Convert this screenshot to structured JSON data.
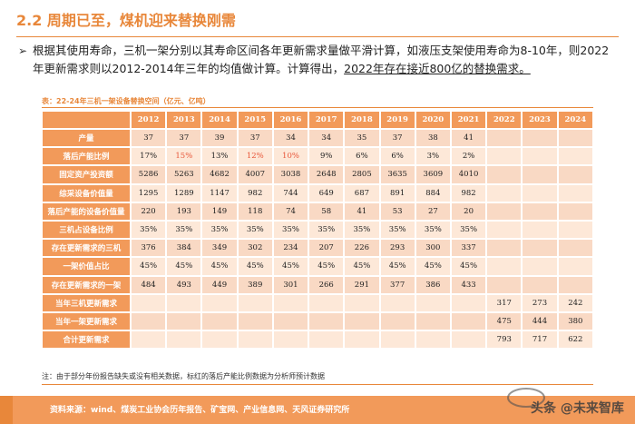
{
  "header": {
    "title": "2.2 周期已至，煤机迎来替换刚需"
  },
  "paragraph": {
    "bullet": "➢",
    "text_before": "根据其使用寿命，三机一架分别以其寿命区间各年更新需求量做平滑计算，如液压支架使用寿命为8-10年，则2022年更新需求则以2012-2014年三年的均值做计算。计算得出，",
    "highlight": "2022年存在接近800亿的替换需求。"
  },
  "table": {
    "caption": "表：22-24年三机一架设备替换空间（亿元、亿吨）",
    "years": [
      "2012",
      "2013",
      "2014",
      "2015",
      "2016",
      "2017",
      "2018",
      "2019",
      "2020",
      "2021",
      "2022",
      "2023",
      "2024"
    ],
    "rows": [
      {
        "label": "产量",
        "values": [
          "37",
          "37",
          "39",
          "37",
          "34",
          "34",
          "35",
          "37",
          "38",
          "41",
          "",
          "",
          ""
        ]
      },
      {
        "label": "落后产能比例",
        "values": [
          "17%",
          "15%",
          "13%",
          "12%",
          "10%",
          "9%",
          "6%",
          "6%",
          "3%",
          "2%",
          "",
          "",
          ""
        ]
      },
      {
        "label": "固定资产投资额",
        "values": [
          "5286",
          "5263",
          "4682",
          "4007",
          "3038",
          "2648",
          "2805",
          "3635",
          "3609",
          "4010",
          "",
          "",
          ""
        ]
      },
      {
        "label": "综采设备价值量",
        "values": [
          "1295",
          "1289",
          "1147",
          "982",
          "744",
          "649",
          "687",
          "891",
          "884",
          "982",
          "",
          "",
          ""
        ]
      },
      {
        "label": "落后产能的设备价值量",
        "values": [
          "220",
          "193",
          "149",
          "118",
          "74",
          "58",
          "41",
          "53",
          "27",
          "20",
          "",
          "",
          ""
        ]
      },
      {
        "label": "三机占设备比例",
        "values": [
          "35%",
          "35%",
          "35%",
          "35%",
          "35%",
          "35%",
          "35%",
          "35%",
          "35%",
          "35%",
          "",
          "",
          ""
        ]
      },
      {
        "label": "存在更新需求的三机",
        "values": [
          "376",
          "384",
          "349",
          "302",
          "234",
          "207",
          "226",
          "293",
          "300",
          "337",
          "",
          "",
          ""
        ]
      },
      {
        "label": "一架价值占比",
        "values": [
          "45%",
          "45%",
          "45%",
          "45%",
          "45%",
          "45%",
          "45%",
          "45%",
          "45%",
          "45%",
          "",
          "",
          ""
        ]
      },
      {
        "label": "存在更新需求的一架",
        "values": [
          "484",
          "493",
          "449",
          "389",
          "301",
          "266",
          "291",
          "377",
          "386",
          "433",
          "",
          "",
          ""
        ]
      },
      {
        "label": "当年三机更新需求",
        "values": [
          "",
          "",
          "",
          "",
          "",
          "",
          "",
          "",
          "",
          "",
          "317",
          "273",
          "242"
        ]
      },
      {
        "label": "当年一架更新需求",
        "values": [
          "",
          "",
          "",
          "",
          "",
          "",
          "",
          "",
          "",
          "",
          "475",
          "444",
          "380"
        ]
      },
      {
        "label": "合计更新需求",
        "values": [
          "",
          "",
          "",
          "",
          "",
          "",
          "",
          "",
          "",
          "",
          "793",
          "717",
          "622"
        ]
      }
    ],
    "note": "注：由于部分年份报告缺失或没有相关数据，标红的落后产能比例数据为分析师预计数据"
  },
  "footer": {
    "source": "资料来源：wind、煤炭工业协会历年报告、矿宝网、产业信息网、天风证券研究所",
    "watermark": "头条 @未来智库"
  },
  "colors": {
    "accent": "#e8873a",
    "header_fill": "#f29a5a",
    "cell_light": "#fde8d8",
    "red_text": "#e8573a"
  }
}
